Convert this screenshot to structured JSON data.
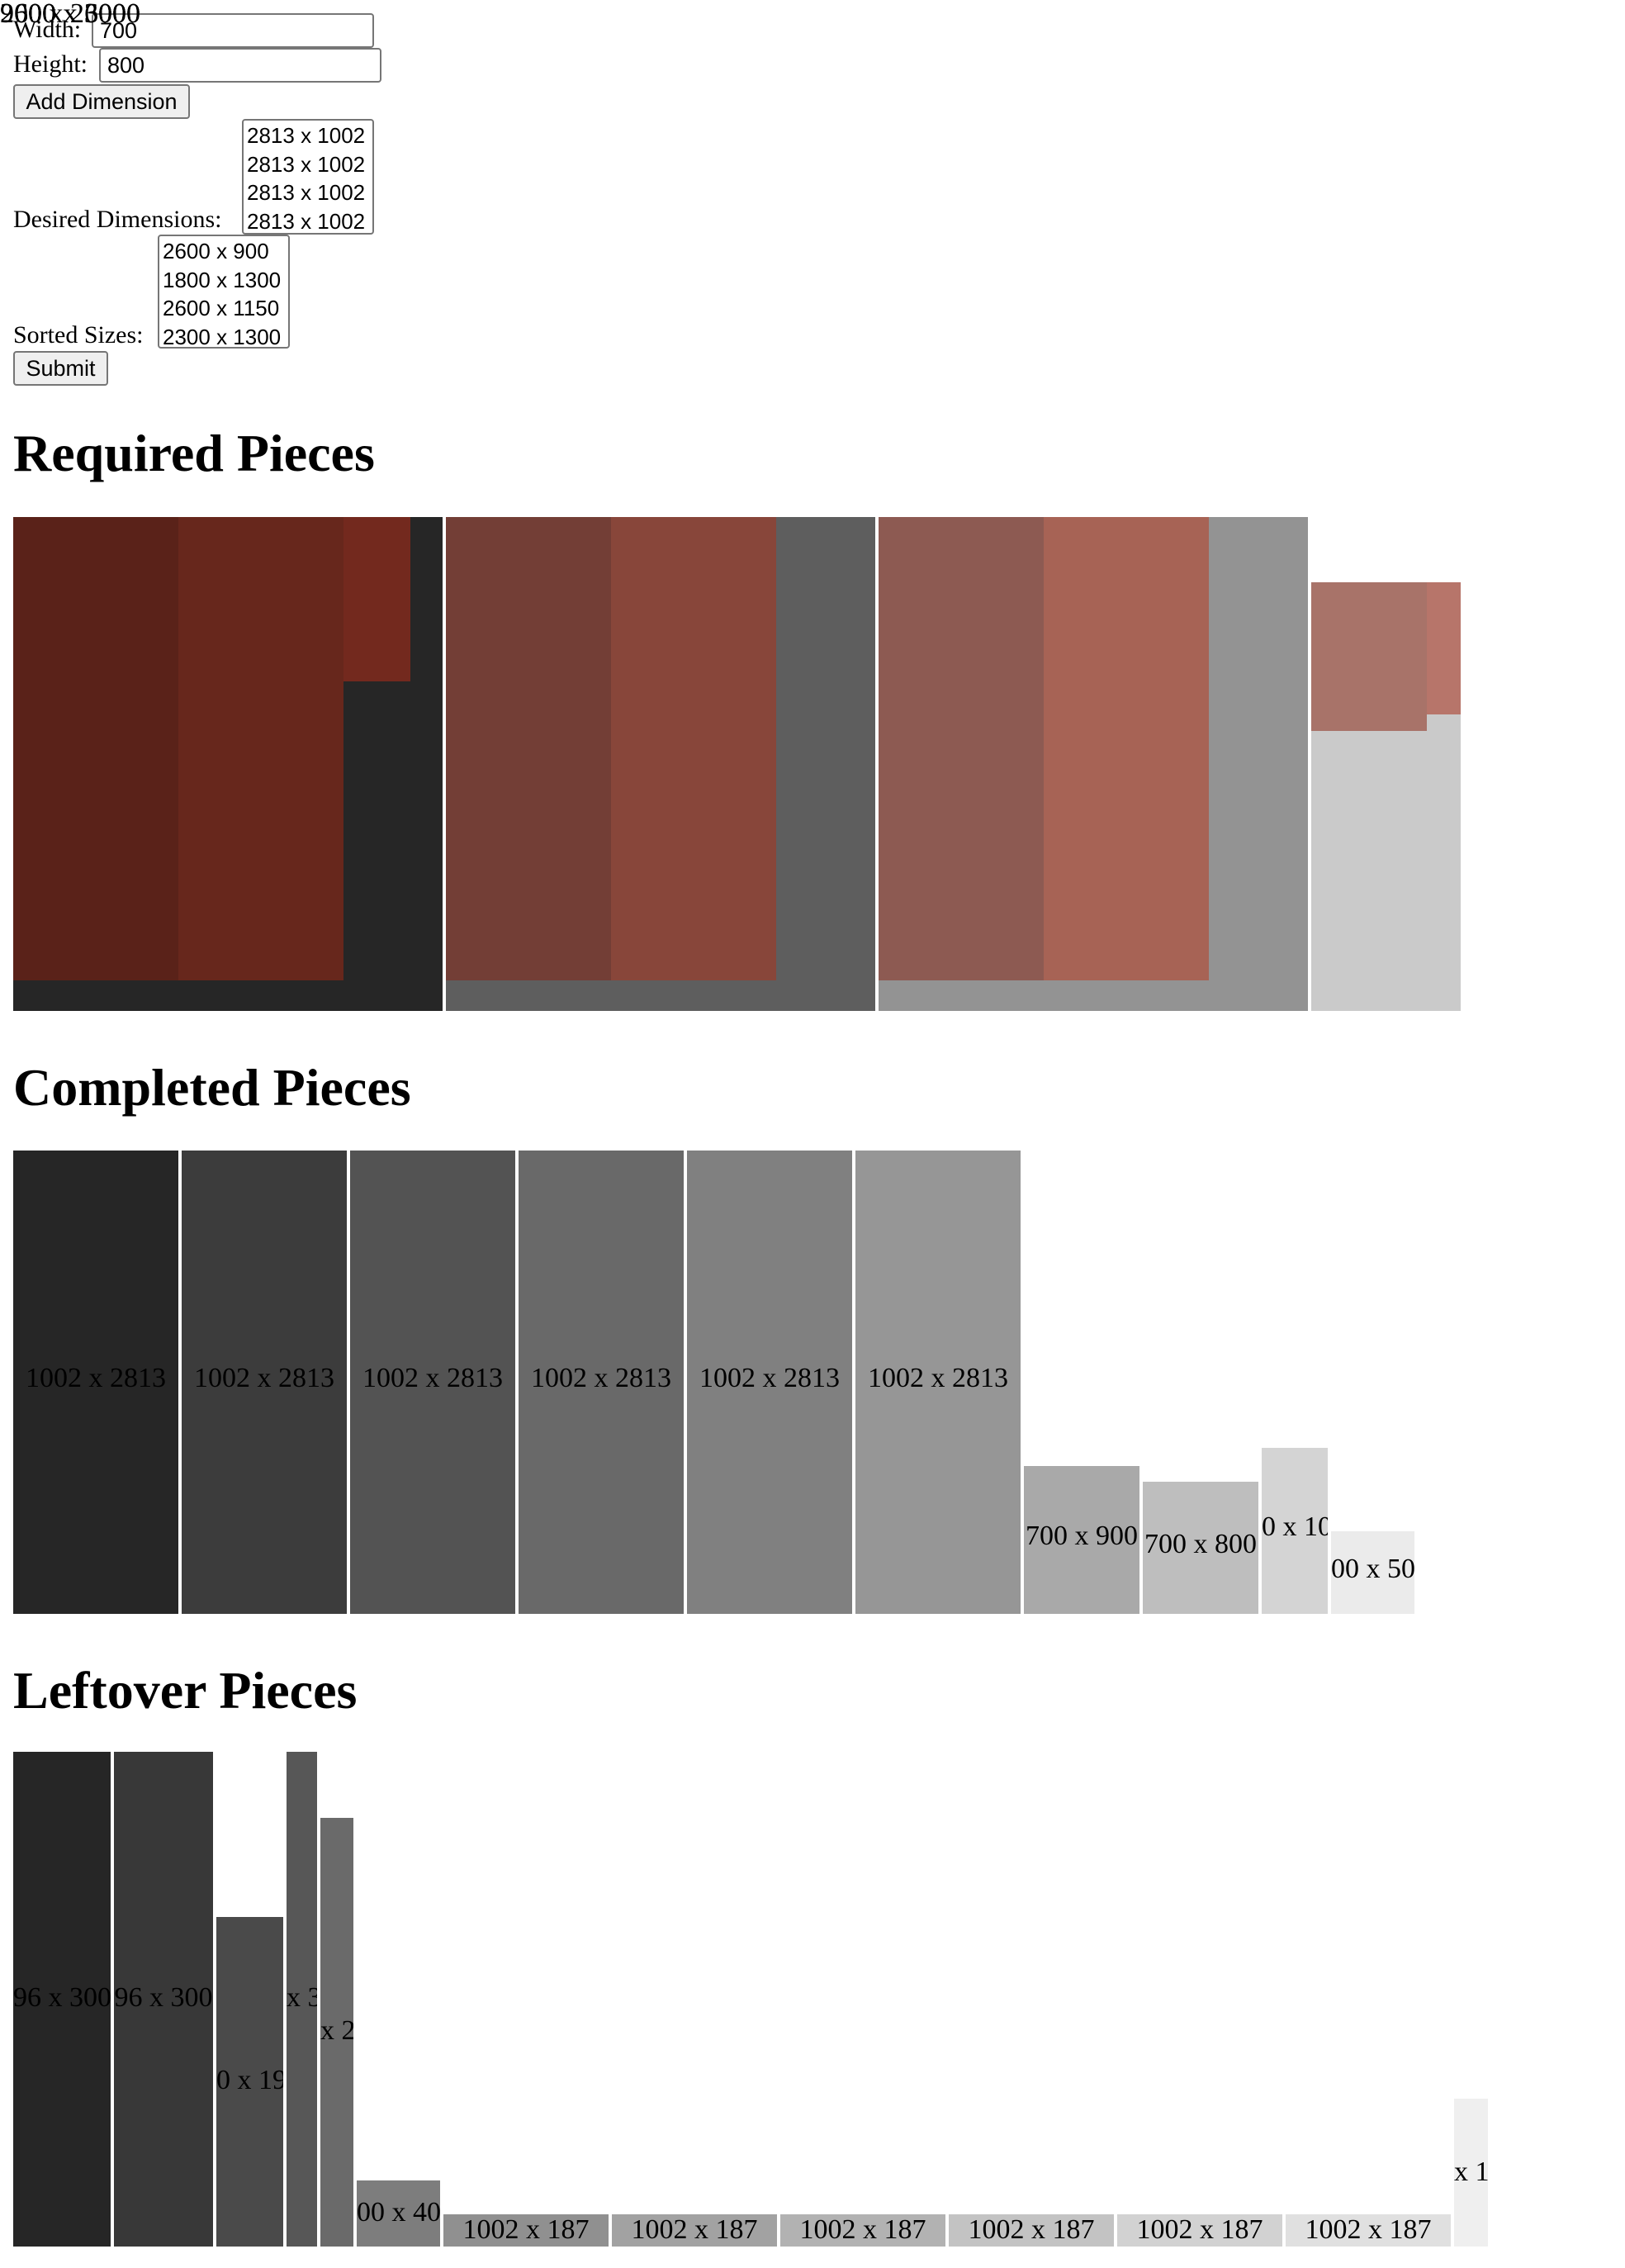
{
  "form": {
    "width_label": "Width:",
    "width_value": "700",
    "height_label": "Height:",
    "height_value": "800",
    "add_button": "Add Dimension",
    "desired_label": "Desired Dimensions:",
    "desired_options": [
      "2813 x 1002",
      "2813 x 1002",
      "2813 x 1002",
      "2813 x 1002"
    ],
    "sorted_label": "Sorted Sizes:",
    "sorted_options": [
      "2600 x 900",
      "1800 x 1300",
      "2600 x 1150",
      "2300 x 1300"
    ],
    "submit_button": "Submit"
  },
  "sections": {
    "required_title": "Required Pieces",
    "completed_title": "Completed Pieces",
    "leftover_title": "Leftover Pieces"
  },
  "required_pieces": [
    {
      "label": "2600 x 3000",
      "color": "#262626",
      "cuts": [
        "#5a2219",
        "#67271c",
        "#73291e"
      ]
    },
    {
      "label": "2600 x 3000",
      "color": "#5e5e5e",
      "cuts": [
        "#733e36",
        "#88463a"
      ]
    },
    {
      "label": "2600 x 3000",
      "color": "#939393",
      "cuts": [
        "#8d5a52",
        "#a76355"
      ]
    },
    {
      "label": "900 x 2600",
      "color": "#cacaca",
      "cuts": [
        "#a87369",
        "#b7756a"
      ]
    }
  ],
  "completed_pieces": [
    {
      "label": "1002 x 2813",
      "color": "#262626"
    },
    {
      "label": "1002 x 2813",
      "color": "#3c3c3c"
    },
    {
      "label": "1002 x 2813",
      "color": "#535353"
    },
    {
      "label": "1002 x 2813",
      "color": "#696969"
    },
    {
      "label": "1002 x 2813",
      "color": "#808080"
    },
    {
      "label": "1002 x 2813",
      "color": "#969696"
    },
    {
      "label": "700 x 900",
      "color": "#a9a9a9"
    },
    {
      "label": "700 x 800",
      "color": "#bebebe"
    },
    {
      "label": "0 x 10",
      "color": "#d4d4d4"
    },
    {
      "label": "00 x 50",
      "color": "#ebebeb"
    }
  ],
  "leftover_pieces": [
    {
      "label": "96 x 300",
      "color": "#262626"
    },
    {
      "label": "96 x 300",
      "color": "#383838"
    },
    {
      "label": "0 x 19",
      "color": "#4a4a4a"
    },
    {
      "label": "x 3",
      "color": "#575757"
    },
    {
      "label": "x 2",
      "color": "#6a6a6a"
    },
    {
      "label": "00 x 40",
      "color": "#7d7d7d"
    },
    {
      "label": "1002 x 187",
      "color": "#909090"
    },
    {
      "label": "1002 x 187",
      "color": "#a2a2a2"
    },
    {
      "label": "1002 x 187",
      "color": "#b2b2b2"
    },
    {
      "label": "1002 x 187",
      "color": "#c3c3c3"
    },
    {
      "label": "1002 x 187",
      "color": "#d2d2d2"
    },
    {
      "label": "1002 x 187",
      "color": "#e0e0e0"
    },
    {
      "label": "x 1",
      "color": "#efefef"
    }
  ]
}
